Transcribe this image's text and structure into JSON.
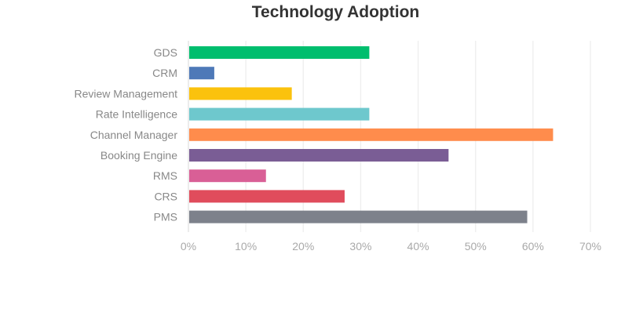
{
  "chart_data": {
    "type": "bar",
    "orientation": "horizontal",
    "title": "Technology Adoption",
    "categories": [
      "GDS",
      "CRM",
      "Review Management",
      "Rate Intelligence",
      "Channel Manager",
      "Booking Engine",
      "RMS",
      "CRS",
      "PMS"
    ],
    "values": [
      31.5,
      4.5,
      18,
      31.5,
      63.5,
      45.3,
      13.5,
      27.2,
      59
    ],
    "colors": [
      "#00be6e",
      "#4e79b8",
      "#fbc20d",
      "#6ec8cd",
      "#ff8c4c",
      "#7a5d95",
      "#d95f96",
      "#e04c5c",
      "#7d818b"
    ],
    "xlim": [
      0,
      70
    ],
    "xticks": [
      "0%",
      "10%",
      "20%",
      "30%",
      "40%",
      "50%",
      "60%",
      "70%"
    ],
    "grid": true,
    "legend": "none"
  }
}
